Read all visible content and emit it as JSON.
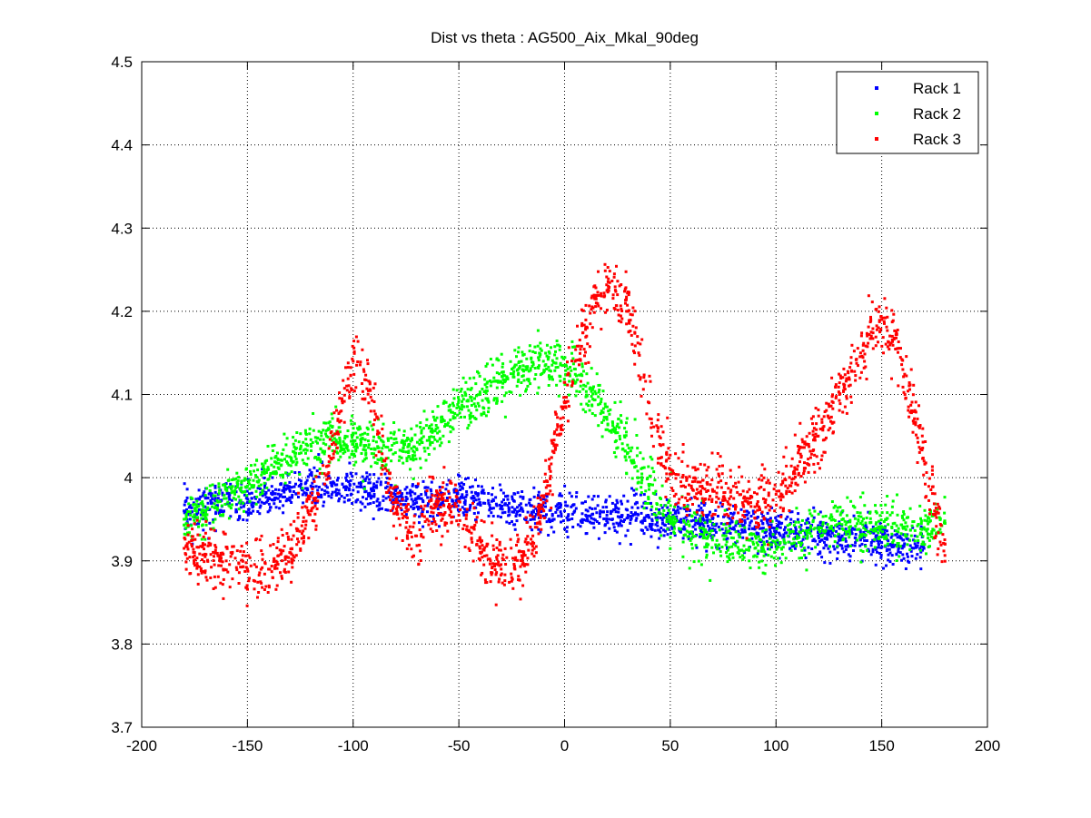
{
  "chart_data": {
    "type": "scatter",
    "title": "Dist vs theta : AG500_Aix_Mkal_90deg",
    "xlabel": "",
    "ylabel": "",
    "xlim": [
      -200,
      200
    ],
    "ylim": [
      3.7,
      4.5
    ],
    "xticks": [
      -200,
      -150,
      -100,
      -50,
      0,
      50,
      100,
      150,
      200
    ],
    "yticks": [
      3.7,
      3.8,
      3.9,
      4.0,
      4.1,
      4.2,
      4.3,
      4.4,
      4.5
    ],
    "xtick_labels": [
      "-200",
      "-150",
      "-100",
      "-50",
      "0",
      "50",
      "100",
      "150",
      "200"
    ],
    "ytick_labels": [
      "3.7",
      "3.8",
      "3.9",
      "4",
      "4.1",
      "4.2",
      "4.3",
      "4.4",
      "4.5"
    ],
    "grid": true,
    "legend_position": "top-right",
    "series": [
      {
        "name": "Rack 1",
        "color": "#0000ff",
        "spread": 0.012,
        "x": [
          -180,
          -170,
          -160,
          -150,
          -140,
          -130,
          -120,
          -110,
          -100,
          -90,
          -80,
          -70,
          -60,
          -50,
          -40,
          -30,
          -20,
          -10,
          0,
          10,
          20,
          30,
          40,
          50,
          60,
          70,
          80,
          90,
          100,
          110,
          120,
          130,
          140,
          150,
          160,
          170
        ],
        "y": [
          3.96,
          3.965,
          3.975,
          3.97,
          3.975,
          3.985,
          3.99,
          3.99,
          3.985,
          3.98,
          3.975,
          3.97,
          3.97,
          3.975,
          3.97,
          3.965,
          3.962,
          3.96,
          3.96,
          3.955,
          3.955,
          3.955,
          3.952,
          3.95,
          3.948,
          3.945,
          3.94,
          3.938,
          3.935,
          3.932,
          3.93,
          3.928,
          3.925,
          3.922,
          3.918,
          3.915
        ]
      },
      {
        "name": "Rack 2",
        "color": "#00ff00",
        "spread": 0.015,
        "x": [
          -180,
          -170,
          -160,
          -150,
          -140,
          -130,
          -120,
          -110,
          -100,
          -90,
          -80,
          -70,
          -60,
          -50,
          -40,
          -30,
          -20,
          -10,
          0,
          10,
          20,
          30,
          40,
          50,
          60,
          70,
          80,
          90,
          100,
          110,
          120,
          130,
          140,
          150,
          160,
          170,
          180
        ],
        "y": [
          3.95,
          3.96,
          3.975,
          3.99,
          4.01,
          4.025,
          4.04,
          4.045,
          4.04,
          4.035,
          4.03,
          4.035,
          4.06,
          4.085,
          4.1,
          4.115,
          4.13,
          4.14,
          4.135,
          4.11,
          4.07,
          4.03,
          3.99,
          3.95,
          3.935,
          3.925,
          3.92,
          3.915,
          3.92,
          3.93,
          3.94,
          3.945,
          3.945,
          3.94,
          3.94,
          3.94,
          3.945
        ]
      },
      {
        "name": "Rack 3",
        "color": "#ff0000",
        "spread": 0.018,
        "x": [
          -180,
          -170,
          -160,
          -150,
          -140,
          -130,
          -120,
          -110,
          -105,
          -100,
          -95,
          -90,
          -85,
          -80,
          -75,
          -70,
          -65,
          -60,
          -55,
          -50,
          -45,
          -40,
          -35,
          -30,
          -25,
          -20,
          -15,
          -10,
          -5,
          0,
          5,
          10,
          15,
          20,
          25,
          30,
          35,
          40,
          45,
          50,
          55,
          60,
          70,
          80,
          90,
          95,
          100,
          110,
          120,
          130,
          140,
          145,
          150,
          155,
          160,
          165,
          170,
          175,
          180
        ],
        "y": [
          3.915,
          3.905,
          3.9,
          3.89,
          3.89,
          3.91,
          3.96,
          4.04,
          4.09,
          4.14,
          4.13,
          4.08,
          4.02,
          3.97,
          3.94,
          3.93,
          3.95,
          3.97,
          3.965,
          3.955,
          3.935,
          3.915,
          3.9,
          3.89,
          3.88,
          3.9,
          3.93,
          3.97,
          4.03,
          4.09,
          4.14,
          4.18,
          4.21,
          4.225,
          4.22,
          4.2,
          4.15,
          4.09,
          4.04,
          4.01,
          3.995,
          3.99,
          3.985,
          3.975,
          3.965,
          3.97,
          3.98,
          4.01,
          4.05,
          4.1,
          4.15,
          4.175,
          4.19,
          4.17,
          4.13,
          4.08,
          4.02,
          3.96,
          3.92
        ]
      }
    ]
  }
}
